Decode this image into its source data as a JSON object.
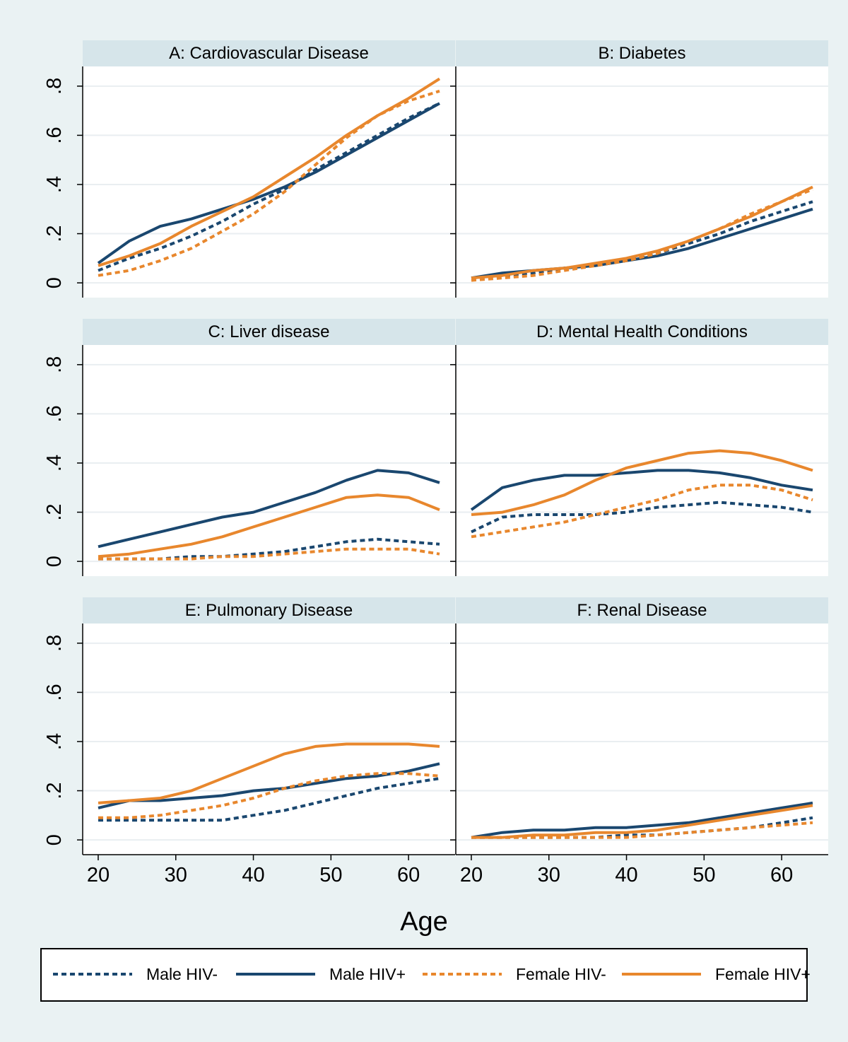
{
  "chart_data": {
    "type": "line",
    "xlabel": "Age",
    "x_ticks": [
      20,
      30,
      40,
      50,
      60
    ],
    "y_tick_labels": [
      "0",
      ".2",
      ".4",
      ".6",
      ".8"
    ],
    "y_ticks": [
      0,
      0.2,
      0.4,
      0.6,
      0.8
    ],
    "xlim": [
      18,
      66
    ],
    "ylim": [
      -0.06,
      0.88
    ],
    "grid": true,
    "legend_position": "bottom",
    "colors": {
      "male": "#1a476f",
      "female": "#e8872d"
    },
    "series_styles": [
      {
        "name": "Male HIV-",
        "color": "#1a476f",
        "dash": "dotted"
      },
      {
        "name": "Male HIV+",
        "color": "#1a476f",
        "dash": "solid"
      },
      {
        "name": "Female HIV-",
        "color": "#e8872d",
        "dash": "dotted"
      },
      {
        "name": "Female HIV+",
        "color": "#e8872d",
        "dash": "solid"
      }
    ],
    "x": [
      20,
      24,
      28,
      32,
      36,
      40,
      44,
      48,
      52,
      56,
      60,
      64
    ],
    "panels": [
      {
        "title": "A: Cardiovascular Disease",
        "series": [
          {
            "name": "Male HIV-",
            "values": [
              0.05,
              0.1,
              0.14,
              0.19,
              0.25,
              0.32,
              0.38,
              0.46,
              0.53,
              0.6,
              0.67,
              0.73
            ]
          },
          {
            "name": "Male HIV+",
            "values": [
              0.08,
              0.17,
              0.23,
              0.26,
              0.3,
              0.34,
              0.39,
              0.45,
              0.52,
              0.59,
              0.66,
              0.73
            ]
          },
          {
            "name": "Female HIV-",
            "values": [
              0.03,
              0.05,
              0.09,
              0.14,
              0.21,
              0.28,
              0.37,
              0.48,
              0.59,
              0.68,
              0.74,
              0.78
            ]
          },
          {
            "name": "Female HIV+",
            "values": [
              0.07,
              0.11,
              0.16,
              0.23,
              0.29,
              0.35,
              0.43,
              0.51,
              0.6,
              0.68,
              0.75,
              0.83
            ]
          }
        ]
      },
      {
        "title": "B: Diabetes",
        "series": [
          {
            "name": "Male HIV-",
            "values": [
              0.02,
              0.03,
              0.04,
              0.06,
              0.07,
              0.09,
              0.12,
              0.16,
              0.2,
              0.25,
              0.29,
              0.33
            ]
          },
          {
            "name": "Male HIV+",
            "values": [
              0.02,
              0.04,
              0.05,
              0.06,
              0.07,
              0.09,
              0.11,
              0.14,
              0.18,
              0.22,
              0.26,
              0.3
            ]
          },
          {
            "name": "Female HIV-",
            "values": [
              0.01,
              0.02,
              0.03,
              0.05,
              0.07,
              0.09,
              0.12,
              0.17,
              0.22,
              0.28,
              0.33,
              0.38
            ]
          },
          {
            "name": "Female HIV+",
            "values": [
              0.02,
              0.03,
              0.05,
              0.06,
              0.08,
              0.1,
              0.13,
              0.17,
              0.22,
              0.27,
              0.33,
              0.39
            ]
          }
        ]
      },
      {
        "title": "C: Liver disease",
        "series": [
          {
            "name": "Male HIV-",
            "values": [
              0.01,
              0.01,
              0.01,
              0.02,
              0.02,
              0.03,
              0.04,
              0.06,
              0.08,
              0.09,
              0.08,
              0.07
            ]
          },
          {
            "name": "Male HIV+",
            "values": [
              0.06,
              0.09,
              0.12,
              0.15,
              0.18,
              0.2,
              0.24,
              0.28,
              0.33,
              0.37,
              0.36,
              0.32
            ]
          },
          {
            "name": "Female HIV-",
            "values": [
              0.01,
              0.01,
              0.01,
              0.01,
              0.02,
              0.02,
              0.03,
              0.04,
              0.05,
              0.05,
              0.05,
              0.03
            ]
          },
          {
            "name": "Female HIV+",
            "values": [
              0.02,
              0.03,
              0.05,
              0.07,
              0.1,
              0.14,
              0.18,
              0.22,
              0.26,
              0.27,
              0.26,
              0.21
            ]
          }
        ]
      },
      {
        "title": "D: Mental Health Conditions",
        "series": [
          {
            "name": "Male HIV-",
            "values": [
              0.12,
              0.18,
              0.19,
              0.19,
              0.19,
              0.2,
              0.22,
              0.23,
              0.24,
              0.23,
              0.22,
              0.2
            ]
          },
          {
            "name": "Male HIV+",
            "values": [
              0.21,
              0.3,
              0.33,
              0.35,
              0.35,
              0.36,
              0.37,
              0.37,
              0.36,
              0.34,
              0.31,
              0.29
            ]
          },
          {
            "name": "Female HIV-",
            "values": [
              0.1,
              0.12,
              0.14,
              0.16,
              0.19,
              0.22,
              0.25,
              0.29,
              0.31,
              0.31,
              0.29,
              0.25
            ]
          },
          {
            "name": "Female HIV+",
            "values": [
              0.19,
              0.2,
              0.23,
              0.27,
              0.33,
              0.38,
              0.41,
              0.44,
              0.45,
              0.44,
              0.41,
              0.37
            ]
          }
        ]
      },
      {
        "title": "E: Pulmonary Disease",
        "series": [
          {
            "name": "Male HIV-",
            "values": [
              0.08,
              0.08,
              0.08,
              0.08,
              0.08,
              0.1,
              0.12,
              0.15,
              0.18,
              0.21,
              0.23,
              0.25
            ]
          },
          {
            "name": "Male HIV+",
            "values": [
              0.13,
              0.16,
              0.16,
              0.17,
              0.18,
              0.2,
              0.21,
              0.23,
              0.25,
              0.26,
              0.28,
              0.31
            ]
          },
          {
            "name": "Female HIV-",
            "values": [
              0.09,
              0.09,
              0.1,
              0.12,
              0.14,
              0.17,
              0.21,
              0.24,
              0.26,
              0.27,
              0.27,
              0.26
            ]
          },
          {
            "name": "Female HIV+",
            "values": [
              0.15,
              0.16,
              0.17,
              0.2,
              0.25,
              0.3,
              0.35,
              0.38,
              0.39,
              0.39,
              0.39,
              0.38
            ]
          }
        ]
      },
      {
        "title": "F: Renal Disease",
        "series": [
          {
            "name": "Male HIV-",
            "values": [
              0.01,
              0.01,
              0.01,
              0.01,
              0.01,
              0.02,
              0.02,
              0.03,
              0.04,
              0.05,
              0.07,
              0.09
            ]
          },
          {
            "name": "Male HIV+",
            "values": [
              0.01,
              0.03,
              0.04,
              0.04,
              0.05,
              0.05,
              0.06,
              0.07,
              0.09,
              0.11,
              0.13,
              0.15
            ]
          },
          {
            "name": "Female HIV-",
            "values": [
              0.01,
              0.01,
              0.01,
              0.01,
              0.01,
              0.01,
              0.02,
              0.03,
              0.04,
              0.05,
              0.06,
              0.07
            ]
          },
          {
            "name": "Female HIV+",
            "values": [
              0.01,
              0.01,
              0.02,
              0.02,
              0.03,
              0.03,
              0.04,
              0.06,
              0.08,
              0.1,
              0.12,
              0.14
            ]
          }
        ]
      }
    ],
    "legend": [
      "Male HIV-",
      "Male HIV+",
      "Female HIV-",
      "Female HIV+"
    ]
  }
}
